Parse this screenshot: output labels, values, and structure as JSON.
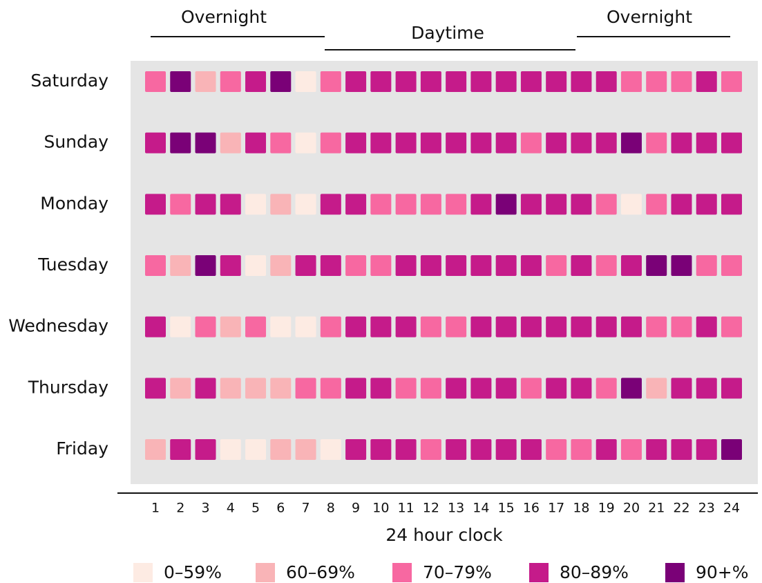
{
  "chart_data": {
    "type": "heatmap",
    "bands": [
      "Overnight",
      "Daytime",
      "Overnight"
    ],
    "x": [
      1,
      2,
      3,
      4,
      5,
      6,
      7,
      8,
      9,
      10,
      11,
      12,
      13,
      14,
      15,
      16,
      17,
      18,
      19,
      20,
      21,
      22,
      23,
      24
    ],
    "xlabel": "24 hour clock",
    "rows": [
      {
        "name": "Saturday",
        "values": [
          70,
          90,
          60,
          70,
          80,
          90,
          0,
          70,
          80,
          80,
          80,
          80,
          80,
          80,
          80,
          80,
          80,
          80,
          80,
          70,
          70,
          70,
          80,
          70
        ]
      },
      {
        "name": "Sunday",
        "values": [
          80,
          90,
          90,
          60,
          80,
          70,
          0,
          70,
          80,
          80,
          80,
          80,
          80,
          80,
          80,
          70,
          80,
          80,
          80,
          90,
          70,
          80,
          80,
          80
        ]
      },
      {
        "name": "Monday",
        "values": [
          80,
          70,
          80,
          80,
          0,
          60,
          0,
          80,
          80,
          70,
          70,
          70,
          70,
          80,
          90,
          80,
          80,
          80,
          70,
          0,
          70,
          80,
          80,
          80
        ]
      },
      {
        "name": "Tuesday",
        "values": [
          70,
          60,
          90,
          80,
          0,
          60,
          80,
          80,
          70,
          70,
          80,
          80,
          80,
          80,
          80,
          80,
          70,
          80,
          70,
          80,
          90,
          90,
          70,
          70
        ]
      },
      {
        "name": "Wednesday",
        "values": [
          80,
          0,
          70,
          60,
          70,
          0,
          0,
          70,
          80,
          80,
          80,
          70,
          70,
          80,
          80,
          80,
          80,
          80,
          80,
          80,
          70,
          70,
          80,
          70
        ]
      },
      {
        "name": "Thursday",
        "values": [
          80,
          60,
          80,
          60,
          60,
          60,
          70,
          70,
          80,
          80,
          70,
          70,
          80,
          80,
          80,
          70,
          80,
          80,
          70,
          90,
          60,
          80,
          80,
          80
        ]
      },
      {
        "name": "Friday",
        "values": [
          60,
          80,
          80,
          0,
          0,
          60,
          60,
          0,
          80,
          80,
          80,
          70,
          80,
          80,
          80,
          80,
          70,
          70,
          80,
          70,
          80,
          80,
          80,
          90
        ]
      }
    ],
    "legend": [
      {
        "value": 0,
        "label": "0–59%",
        "color": "#fdebe3"
      },
      {
        "value": 60,
        "label": "60–69%",
        "color": "#f9b4b7"
      },
      {
        "value": 70,
        "label": "70–79%",
        "color": "#f768a1"
      },
      {
        "value": 80,
        "label": "80–89%",
        "color": "#c51b8a"
      },
      {
        "value": 90,
        "label": "90+%",
        "color": "#7a0177"
      }
    ]
  }
}
